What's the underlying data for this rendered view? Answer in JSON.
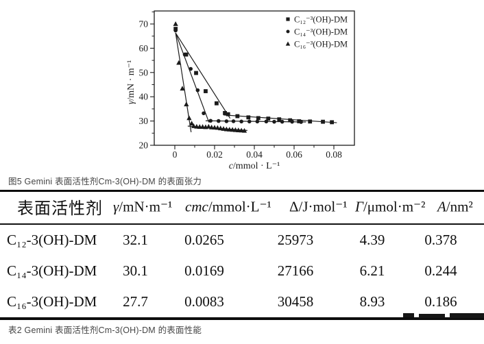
{
  "page": {
    "background": "#ffffff",
    "ink_color": "#1b1b1b",
    "caption_color": "#454545"
  },
  "figure": {
    "caption": "图5 Gemini 表面活性剂Cm-3(OH)-DM 的表面张力"
  },
  "chart_data": {
    "type": "scatter",
    "title": "",
    "xlabel": {
      "sym": "c",
      "rest": "/mmol · L⁻¹"
    },
    "ylabel": {
      "sym": "γ",
      "rest": "/mN · m⁻¹"
    },
    "xlim": [
      -0.0103,
      0.0903
    ],
    "ylim": [
      20,
      75.4
    ],
    "xticks": [
      0,
      0.02,
      0.04,
      0.06,
      0.08
    ],
    "xtick_labels": [
      "0",
      "0.02",
      "0.04",
      "0.06",
      "0.08"
    ],
    "xminor": [
      0.01,
      0.03,
      0.05,
      0.07,
      0.09
    ],
    "yticks": [
      20,
      30,
      40,
      50,
      60,
      70
    ],
    "ytick_labels": [
      "20",
      "30",
      "40",
      "50",
      "60",
      "70"
    ],
    "yminor": [
      25,
      35,
      45,
      55,
      65,
      75
    ],
    "grid": false,
    "legend_position": "top-right",
    "series": [
      {
        "name": "C₁₂⁻³(OH)-DM",
        "marker": "square",
        "points": [
          [
            0.0004,
            68
          ],
          [
            0.0057,
            57.4
          ],
          [
            0.0107,
            49.8
          ],
          [
            0.0155,
            42.3
          ],
          [
            0.021,
            37.3
          ],
          [
            0.0252,
            33.3
          ],
          [
            0.0268,
            32.8
          ],
          [
            0.0315,
            32.0
          ],
          [
            0.037,
            31.5
          ],
          [
            0.042,
            31.2
          ],
          [
            0.047,
            31.0
          ],
          [
            0.0525,
            30.7
          ],
          [
            0.058,
            30.3
          ],
          [
            0.0625,
            29.9
          ],
          [
            0.068,
            29.8
          ],
          [
            0.0745,
            29.7
          ],
          [
            0.079,
            29.5
          ]
        ],
        "fit_lines": [
          [
            [
              0.0004,
              66.3
            ],
            [
              0.0278,
              31.1
            ]
          ],
          [
            [
              0.0245,
              32.5
            ],
            [
              0.0815,
              29.3
            ]
          ]
        ]
      },
      {
        "name": "C₁₄⁻³(OH)-DM",
        "marker": "circle",
        "points": [
          [
            0.0004,
            67.3
          ],
          [
            0.005,
            57.4
          ],
          [
            0.008,
            51.5
          ],
          [
            0.0115,
            42.7
          ],
          [
            0.0145,
            33.2
          ],
          [
            0.018,
            30.1
          ],
          [
            0.022,
            30.0
          ],
          [
            0.026,
            29.9
          ],
          [
            0.0295,
            29.9
          ],
          [
            0.0335,
            29.8
          ],
          [
            0.0375,
            29.8
          ],
          [
            0.0415,
            29.8
          ],
          [
            0.046,
            29.8
          ],
          [
            0.05,
            29.7
          ],
          [
            0.054,
            29.7
          ],
          [
            0.059,
            29.7
          ],
          [
            0.0635,
            29.6
          ]
        ],
        "fit_lines": [
          [
            [
              0.0004,
              66.3
            ],
            [
              0.0172,
              29.4
            ]
          ],
          [
            [
              0.0155,
              30.1
            ],
            [
              0.066,
              29.6
            ]
          ]
        ]
      },
      {
        "name": "C₁₆⁻³(OH)-DM",
        "marker": "triangle",
        "points": [
          [
            0.0004,
            70
          ],
          [
            0.002,
            54
          ],
          [
            0.0038,
            43.4
          ],
          [
            0.0058,
            36.9
          ],
          [
            0.0072,
            31.2
          ],
          [
            0.0085,
            29.0
          ],
          [
            0.0095,
            27.9
          ],
          [
            0.011,
            27.7
          ],
          [
            0.0125,
            27.6
          ],
          [
            0.014,
            27.6
          ],
          [
            0.0155,
            27.5
          ],
          [
            0.017,
            27.7
          ],
          [
            0.0185,
            27.4
          ],
          [
            0.02,
            27.3
          ],
          [
            0.0215,
            27.2
          ],
          [
            0.023,
            27.0
          ],
          [
            0.0245,
            26.8
          ],
          [
            0.026,
            26.6
          ],
          [
            0.0275,
            26.5
          ],
          [
            0.029,
            26.4
          ],
          [
            0.0305,
            26.3
          ],
          [
            0.032,
            26.2
          ],
          [
            0.0335,
            26.1
          ],
          [
            0.035,
            26.0
          ]
        ],
        "fit_lines": [
          [
            [
              0.0004,
              66.3
            ],
            [
              0.0082,
              25.4
            ]
          ],
          [
            [
              0.0065,
              27.9
            ],
            [
              0.0365,
              26.1
            ]
          ]
        ]
      }
    ]
  },
  "table": {
    "caption": "表2 Gemini 表面活性剂Cm-3(OH)-DM 的表面性能",
    "columns": [
      {
        "sym": "",
        "sym_italic": false,
        "rest": "表面活性剂",
        "cjk": true
      },
      {
        "sym": "γ",
        "sym_italic": true,
        "rest": "/mN·m⁻¹",
        "cjk": false
      },
      {
        "sym": "cmc",
        "sym_italic": true,
        "rest": "/mmol·L⁻¹",
        "cjk": false
      },
      {
        "sym": "Δ",
        "sym_italic": false,
        "rest": "/J·mol⁻¹",
        "cjk": false
      },
      {
        "sym": "Γ",
        "sym_italic": true,
        "rest": "/μmol·m⁻²",
        "cjk": false
      },
      {
        "sym": "A",
        "sym_italic": true,
        "rest": "/nm²",
        "cjk": false
      }
    ],
    "rows": [
      [
        "C₁₂-3(OH)-DM",
        "32.1",
        "0.0265",
        "25973",
        "4.39",
        "0.378"
      ],
      [
        "C₁₄-3(OH)-DM",
        "30.1",
        "0.0169",
        "27166",
        "6.21",
        "0.244"
      ],
      [
        "C₁₆-3(OH)-DM",
        "27.7",
        "0.0083",
        "30458",
        "8.93",
        "0.186"
      ]
    ]
  }
}
